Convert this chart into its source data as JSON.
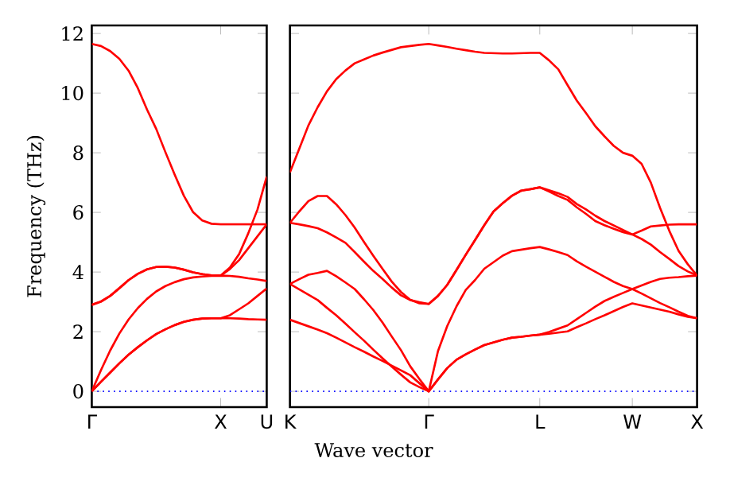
{
  "chart_data": [
    {
      "type": "line",
      "ylabel": "Frequency (THz)",
      "ylim": [
        -0.53,
        12.27
      ],
      "categories": [
        "Γ",
        null,
        null,
        null,
        null,
        null,
        null,
        null,
        null,
        null,
        null,
        null,
        null,
        null,
        "X",
        null,
        null,
        null,
        null,
        "U"
      ],
      "yticks": [
        0,
        2,
        4,
        6,
        8,
        10,
        12
      ],
      "ref_lines": [
        {
          "axis": "y",
          "value": 0,
          "color": "#0000ff",
          "line_style": "dotted"
        }
      ],
      "series": [
        {
          "color": "#ff0000",
          "values": [
            0,
            0.32,
            0.63,
            0.94,
            1.23,
            1.48,
            1.71,
            1.92,
            2.08,
            2.22,
            2.33,
            2.4,
            2.44,
            2.45,
            2.45,
            2.45,
            2.44,
            2.42,
            2.41,
            2.4
          ]
        },
        {
          "color": "#ff0000",
          "values": [
            0,
            0.32,
            0.63,
            0.94,
            1.23,
            1.48,
            1.71,
            1.92,
            2.08,
            2.22,
            2.33,
            2.4,
            2.44,
            2.45,
            2.45,
            2.55,
            2.75,
            2.95,
            3.2,
            3.45
          ]
        },
        {
          "color": "#ff0000",
          "values": [
            0,
            0.71,
            1.37,
            1.94,
            2.41,
            2.79,
            3.1,
            3.35,
            3.53,
            3.66,
            3.76,
            3.82,
            3.85,
            3.87,
            3.88,
            3.87,
            3.84,
            3.79,
            3.75,
            3.7
          ]
        },
        {
          "color": "#ff0000",
          "values": [
            2.9,
            3.01,
            3.2,
            3.46,
            3.73,
            3.94,
            4.09,
            4.17,
            4.18,
            4.15,
            4.08,
            3.99,
            3.93,
            3.89,
            3.88,
            4.15,
            4.6,
            5.3,
            6.1,
            7.2
          ]
        },
        {
          "color": "#ff0000",
          "values": [
            2.9,
            3.01,
            3.2,
            3.46,
            3.73,
            3.94,
            4.09,
            4.17,
            4.18,
            4.15,
            4.08,
            3.99,
            3.93,
            3.89,
            3.88,
            4.1,
            4.4,
            4.8,
            5.2,
            5.6
          ]
        },
        {
          "color": "#ff0000",
          "values": [
            11.65,
            11.58,
            11.41,
            11.15,
            10.75,
            10.17,
            9.45,
            8.8,
            8.02,
            7.27,
            6.56,
            6.01,
            5.73,
            5.62,
            5.6,
            5.6,
            5.6,
            5.6,
            5.6,
            5.6
          ]
        }
      ]
    },
    {
      "type": "line",
      "xlabel": "Wave vector",
      "ylim": [
        -0.53,
        12.27
      ],
      "tick_labels": "x",
      "categories": [
        "K",
        null,
        null,
        null,
        null,
        null,
        null,
        null,
        null,
        null,
        null,
        null,
        null,
        null,
        null,
        "Γ",
        null,
        null,
        null,
        null,
        null,
        null,
        null,
        null,
        null,
        null,
        null,
        "L",
        null,
        null,
        null,
        null,
        null,
        null,
        null,
        null,
        null,
        "W",
        null,
        null,
        null,
        null,
        null,
        null,
        "X"
      ],
      "yticks": [
        0,
        2,
        4,
        6,
        8,
        10,
        12
      ],
      "ref_lines": [
        {
          "axis": "y",
          "value": 0,
          "color": "#0000ff",
          "line_style": "dotted"
        }
      ],
      "series": [
        {
          "color": "#ff0000",
          "values": [
            7.34,
            8.13,
            8.92,
            9.53,
            10.06,
            10.47,
            10.76,
            11.0,
            11.13,
            11.26,
            11.36,
            11.45,
            11.54,
            11.58,
            11.62,
            11.65,
            11.6,
            11.55,
            11.49,
            11.44,
            11.39,
            11.35,
            11.34,
            11.33,
            11.33,
            11.34,
            11.35,
            11.35,
            11.1,
            10.8,
            10.27,
            9.75,
            9.33,
            8.89,
            8.55,
            8.23,
            8.0,
            7.9,
            7.63,
            7.0,
            6.15,
            5.38,
            4.71,
            4.26,
            3.88
          ]
        },
        {
          "color": "#ff0000",
          "values": [
            5.65,
            6.03,
            6.38,
            6.55,
            6.55,
            6.27,
            5.91,
            5.49,
            5.01,
            4.55,
            4.11,
            3.68,
            3.33,
            3.07,
            2.95,
            2.93,
            3.2,
            3.57,
            4.07,
            4.58,
            5.07,
            5.57,
            6.03,
            6.31,
            6.56,
            6.73,
            6.78,
            6.84,
            6.74,
            6.64,
            6.52,
            6.28,
            6.1,
            5.89,
            5.71,
            5.56,
            5.41,
            5.26,
            5.39,
            5.53,
            5.56,
            5.59,
            5.6,
            5.6,
            5.6
          ]
        },
        {
          "color": "#ff0000",
          "values": [
            5.65,
            5.6,
            5.54,
            5.47,
            5.33,
            5.16,
            4.98,
            4.67,
            4.35,
            4.04,
            3.77,
            3.48,
            3.22,
            3.06,
            2.99,
            2.93,
            3.2,
            3.57,
            4.07,
            4.58,
            5.07,
            5.57,
            6.03,
            6.31,
            6.56,
            6.73,
            6.78,
            6.84,
            6.7,
            6.55,
            6.42,
            6.17,
            5.95,
            5.71,
            5.57,
            5.45,
            5.34,
            5.26,
            5.11,
            4.92,
            4.67,
            4.44,
            4.2,
            4.02,
            3.88
          ]
        },
        {
          "color": "#ff0000",
          "values": [
            3.6,
            3.76,
            3.91,
            3.97,
            4.04,
            3.86,
            3.65,
            3.43,
            3.09,
            2.73,
            2.31,
            1.84,
            1.38,
            0.84,
            0.41,
            0,
            1.35,
            2.19,
            2.85,
            3.4,
            3.73,
            4.11,
            4.33,
            4.55,
            4.7,
            4.75,
            4.8,
            4.84,
            4.76,
            4.67,
            4.57,
            4.36,
            4.18,
            4.01,
            3.84,
            3.67,
            3.53,
            3.43,
            3.55,
            3.67,
            3.77,
            3.81,
            3.83,
            3.86,
            3.88
          ]
        },
        {
          "color": "#ff0000",
          "values": [
            3.6,
            3.42,
            3.24,
            3.06,
            2.8,
            2.55,
            2.27,
            1.98,
            1.7,
            1.4,
            1.11,
            0.83,
            0.56,
            0.3,
            0.14,
            0,
            0.4,
            0.78,
            1.06,
            1.24,
            1.4,
            1.55,
            1.64,
            1.73,
            1.8,
            1.83,
            1.87,
            1.9,
            1.99,
            2.1,
            2.21,
            2.42,
            2.63,
            2.84,
            3.03,
            3.17,
            3.3,
            3.43,
            3.28,
            3.12,
            2.96,
            2.82,
            2.67,
            2.53,
            2.45
          ]
        },
        {
          "color": "#ff0000",
          "values": [
            2.4,
            2.29,
            2.18,
            2.07,
            1.95,
            1.8,
            1.64,
            1.48,
            1.33,
            1.17,
            1.02,
            0.86,
            0.7,
            0.54,
            0.27,
            0,
            0.4,
            0.78,
            1.06,
            1.24,
            1.4,
            1.55,
            1.64,
            1.73,
            1.8,
            1.83,
            1.87,
            1.9,
            1.93,
            1.97,
            2.01,
            2.15,
            2.28,
            2.42,
            2.55,
            2.69,
            2.83,
            2.95,
            2.88,
            2.81,
            2.74,
            2.67,
            2.58,
            2.5,
            2.45
          ]
        }
      ]
    }
  ]
}
